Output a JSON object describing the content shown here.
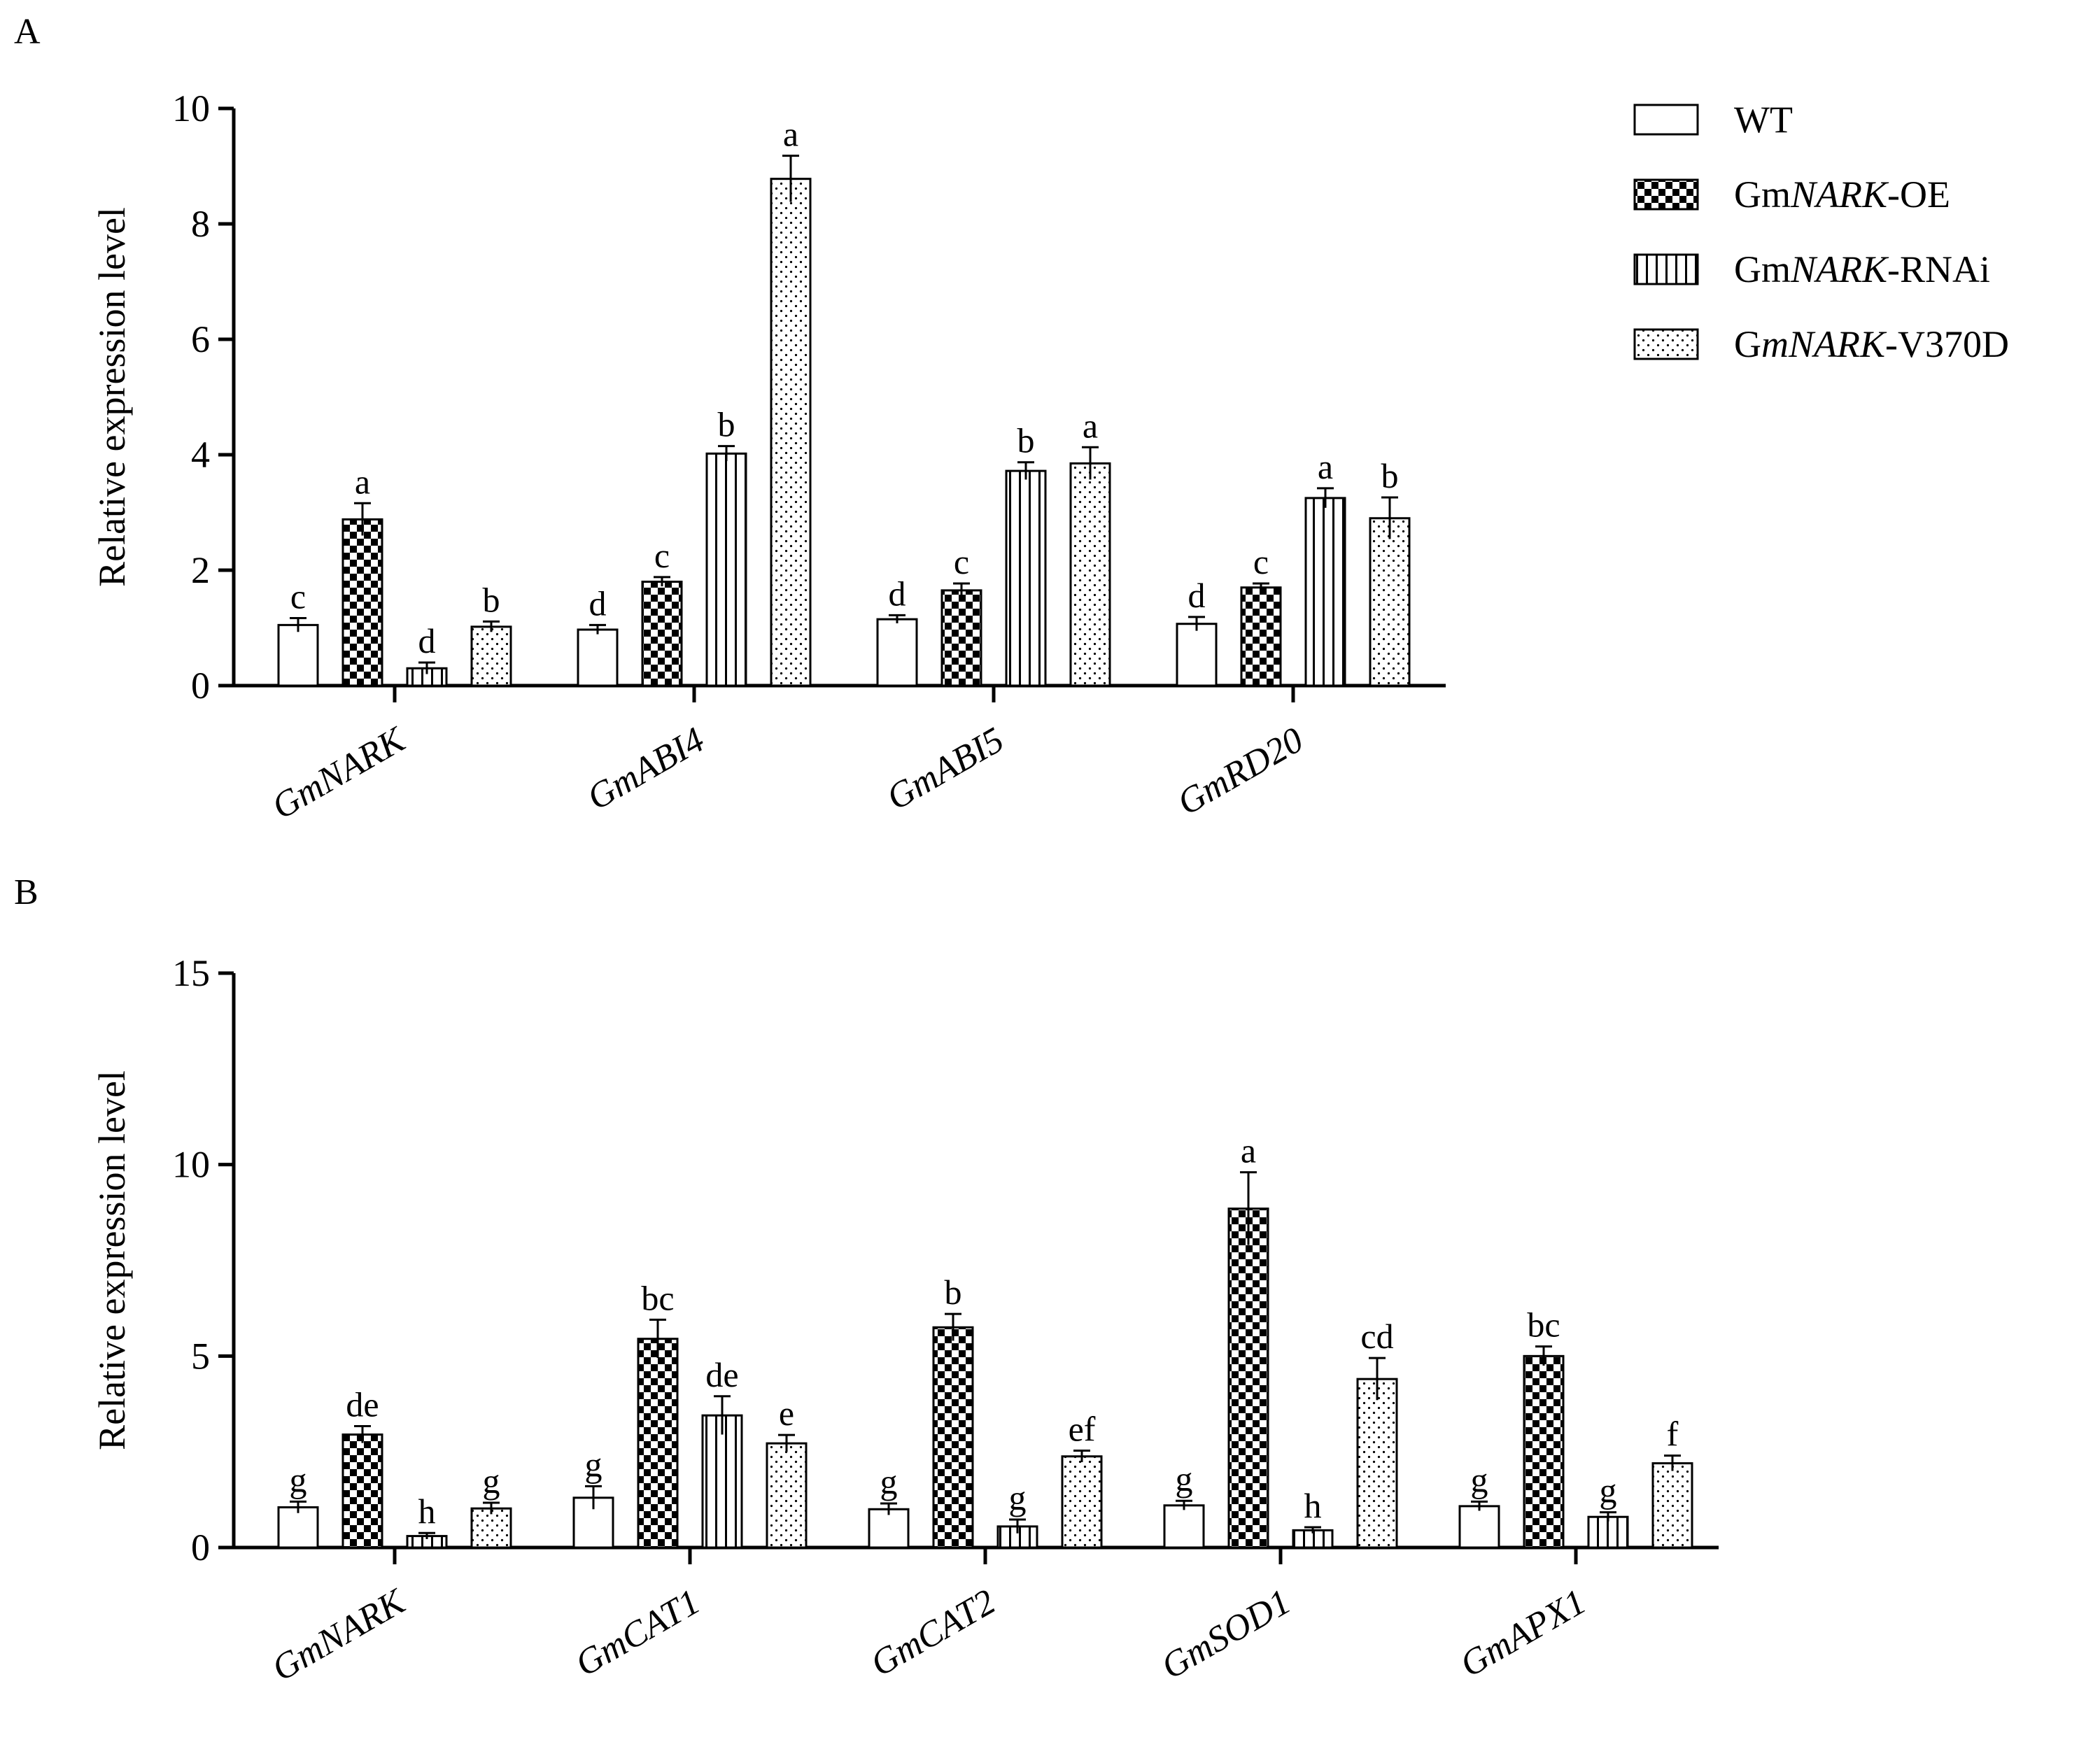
{
  "figure": {
    "panels": [
      "A",
      "B"
    ]
  },
  "colors": {
    "stroke": "#000000",
    "background": "#ffffff"
  },
  "legend": [
    {
      "prefix": "",
      "gene": "",
      "suffix": "WT",
      "pattern": "plain"
    },
    {
      "prefix": "Gm",
      "gene": "NARK",
      "suffix": "-OE",
      "pattern": "checker"
    },
    {
      "prefix": "Gm",
      "gene": "NARK",
      "suffix": "-RNAi",
      "pattern": "vstripe"
    },
    {
      "prefix": "G",
      "gene": "mNARK",
      "suffix": "-V370D",
      "pattern": "dots"
    }
  ],
  "chart_data": [
    {
      "panel": "A",
      "type": "bar",
      "title": "",
      "xlabel": "",
      "ylabel": "Relative expression level",
      "ylim": [
        0,
        10
      ],
      "yticks": [
        0,
        2,
        4,
        6,
        8,
        10
      ],
      "ytick_labels": [
        "0",
        "2",
        "4",
        "6",
        "8",
        "10"
      ],
      "categories": [
        "GmNARK",
        "GmABI4",
        "GmABI5",
        "GmRD20"
      ],
      "series": [
        {
          "name": "WT",
          "values": [
            1.05,
            0.97,
            1.15,
            1.07
          ],
          "errors": [
            0.12,
            0.08,
            0.07,
            0.12
          ],
          "labels": [
            "c",
            "d",
            "d",
            "d"
          ]
        },
        {
          "name": "GmNARK-OE",
          "values": [
            2.88,
            1.8,
            1.65,
            1.7
          ],
          "errors": [
            0.28,
            0.08,
            0.12,
            0.07
          ],
          "labels": [
            "a",
            "c",
            "c",
            "c"
          ]
        },
        {
          "name": "GmNARK-RNAi",
          "values": [
            0.3,
            4.02,
            3.72,
            3.25
          ],
          "errors": [
            0.1,
            0.13,
            0.15,
            0.17
          ],
          "labels": [
            "d",
            "b",
            "b",
            "a"
          ]
        },
        {
          "name": "GmNARK-V370D",
          "values": [
            1.02,
            8.78,
            3.85,
            2.9
          ],
          "errors": [
            0.09,
            0.4,
            0.28,
            0.36
          ],
          "labels": [
            "b",
            "a",
            "a",
            "b"
          ]
        }
      ]
    },
    {
      "panel": "B",
      "type": "bar",
      "title": "",
      "xlabel": "",
      "ylabel": "Relative expression level",
      "ylim": [
        0,
        15
      ],
      "yticks": [
        0,
        5,
        10,
        15
      ],
      "ytick_labels": [
        "0",
        "5",
        "10",
        "15"
      ],
      "categories": [
        "GmNARK",
        "GmCAT1",
        "GmCAT2",
        "GmSOD1",
        "GmAPX1"
      ],
      "series": [
        {
          "name": "WT",
          "values": [
            1.05,
            1.3,
            1.0,
            1.1,
            1.08
          ],
          "errors": [
            0.15,
            0.3,
            0.15,
            0.12,
            0.12
          ],
          "labels": [
            "g",
            "g",
            "g",
            "g",
            "g"
          ]
        },
        {
          "name": "GmNARK-OE",
          "values": [
            2.95,
            5.45,
            5.75,
            8.85,
            5.0
          ],
          "errors": [
            0.22,
            0.5,
            0.35,
            0.95,
            0.25
          ],
          "labels": [
            "de",
            "bc",
            "b",
            "a",
            "bc"
          ]
        },
        {
          "name": "GmNARK-RNAi",
          "values": [
            0.3,
            3.45,
            0.55,
            0.45,
            0.8
          ],
          "errors": [
            0.08,
            0.5,
            0.18,
            0.08,
            0.12
          ],
          "labels": [
            "h",
            "de",
            "g",
            "h",
            "g"
          ]
        },
        {
          "name": "GmNARK-V370D",
          "values": [
            1.02,
            2.72,
            2.38,
            4.4,
            2.2
          ],
          "errors": [
            0.15,
            0.22,
            0.15,
            0.55,
            0.2
          ],
          "labels": [
            "g",
            "e",
            "ef",
            "cd",
            "f"
          ]
        }
      ]
    }
  ]
}
